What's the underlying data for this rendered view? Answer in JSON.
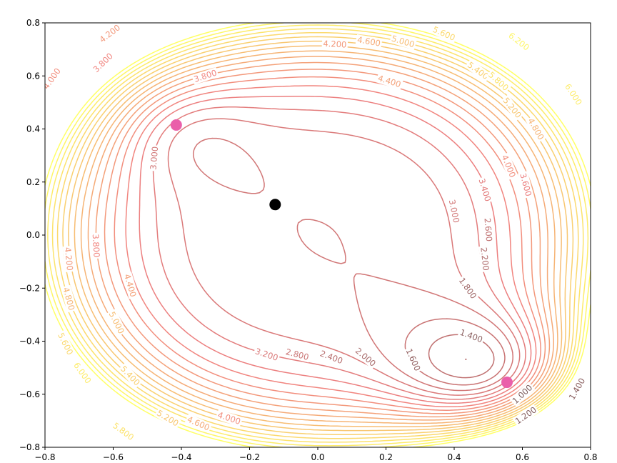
{
  "chart_data": {
    "type": "contour",
    "title": "",
    "xlabel": "",
    "ylabel": "",
    "xlim": [
      -0.8,
      0.8
    ],
    "ylim": [
      -0.8,
      0.8
    ],
    "grid": false,
    "xticks": [
      "−0.8",
      "−0.6",
      "−0.4",
      "−0.2",
      "0.0",
      "0.2",
      "0.4",
      "0.6",
      "0.8"
    ],
    "yticks": [
      "−0.8",
      "−0.6",
      "−0.4",
      "−0.2",
      "0.0",
      "0.2",
      "0.4",
      "0.6",
      "0.8"
    ],
    "levels": [
      1.0,
      1.2,
      1.4,
      1.6,
      1.8,
      2.0,
      2.2,
      2.4,
      2.6,
      2.8,
      3.0,
      3.2,
      3.4,
      3.6,
      3.8,
      4.0,
      4.2,
      4.4,
      4.6,
      4.8,
      5.0,
      5.2,
      5.4,
      5.6,
      5.8,
      6.0,
      6.2,
      6.4
    ],
    "colormap": [
      "#7a5a5a",
      "#f08080",
      "#ffff66"
    ],
    "contour_labels": [
      {
        "text": "1.000",
        "x": 0.6,
        "y": -0.6
      },
      {
        "text": "1.200",
        "x": 0.61,
        "y": -0.68
      },
      {
        "text": "1.400",
        "x": 0.45,
        "y": -0.38
      },
      {
        "text": "1.400",
        "x": 0.76,
        "y": -0.58
      },
      {
        "text": "1.600",
        "x": 0.28,
        "y": -0.47
      },
      {
        "text": "1.800",
        "x": 0.44,
        "y": -0.2
      },
      {
        "text": "2.000",
        "x": 0.14,
        "y": -0.46
      },
      {
        "text": "2.200",
        "x": 0.49,
        "y": -0.09
      },
      {
        "text": "2.400",
        "x": 0.04,
        "y": -0.46
      },
      {
        "text": "2.600",
        "x": 0.5,
        "y": 0.02
      },
      {
        "text": "2.800",
        "x": -0.06,
        "y": -0.45
      },
      {
        "text": "3.000",
        "x": 0.4,
        "y": 0.09
      },
      {
        "text": "3.000",
        "x": -0.48,
        "y": 0.29
      },
      {
        "text": "3.200",
        "x": -0.15,
        "y": -0.45
      },
      {
        "text": "3.400",
        "x": 0.49,
        "y": 0.17
      },
      {
        "text": "3.600",
        "x": 0.61,
        "y": 0.19
      },
      {
        "text": "3.800",
        "x": -0.33,
        "y": 0.6
      },
      {
        "text": "3.800",
        "x": -0.63,
        "y": 0.65
      },
      {
        "text": "3.800",
        "x": -0.65,
        "y": -0.04
      },
      {
        "text": "4.000",
        "x": 0.56,
        "y": 0.26
      },
      {
        "text": "4.000",
        "x": -0.78,
        "y": 0.59
      },
      {
        "text": "4.000",
        "x": -0.26,
        "y": -0.69
      },
      {
        "text": "4.200",
        "x": 0.05,
        "y": 0.72
      },
      {
        "text": "4.200",
        "x": -0.61,
        "y": 0.76
      },
      {
        "text": "4.200",
        "x": -0.73,
        "y": -0.09
      },
      {
        "text": "4.400",
        "x": 0.21,
        "y": 0.58
      },
      {
        "text": "4.400",
        "x": -0.55,
        "y": -0.19
      },
      {
        "text": "4.600",
        "x": 0.15,
        "y": 0.73
      },
      {
        "text": "4.600",
        "x": -0.35,
        "y": -0.71
      },
      {
        "text": "4.800",
        "x": 0.64,
        "y": 0.4
      },
      {
        "text": "4.800",
        "x": -0.73,
        "y": -0.24
      },
      {
        "text": "5.000",
        "x": 0.25,
        "y": 0.73
      },
      {
        "text": "5.000",
        "x": -0.59,
        "y": -0.33
      },
      {
        "text": "5.200",
        "x": 0.57,
        "y": 0.48
      },
      {
        "text": "5.200",
        "x": -0.44,
        "y": -0.69
      },
      {
        "text": "5.400",
        "x": 0.47,
        "y": 0.62
      },
      {
        "text": "5.400",
        "x": -0.55,
        "y": -0.53
      },
      {
        "text": "5.600",
        "x": 0.37,
        "y": 0.76
      },
      {
        "text": "5.600",
        "x": -0.74,
        "y": -0.41
      },
      {
        "text": "5.800",
        "x": 0.53,
        "y": 0.58
      },
      {
        "text": "5.800",
        "x": -0.57,
        "y": -0.74
      },
      {
        "text": "6.000",
        "x": 0.75,
        "y": 0.53
      },
      {
        "text": "6.000",
        "x": -0.69,
        "y": -0.52
      },
      {
        "text": "6.200",
        "x": 0.59,
        "y": 0.73
      }
    ],
    "markers": [
      {
        "x": -0.415,
        "y": 0.415,
        "color": "#ea5faa"
      },
      {
        "x": 0.555,
        "y": -0.555,
        "color": "#ea5faa"
      },
      {
        "x": -0.125,
        "y": 0.115,
        "color": "#000000"
      }
    ]
  }
}
